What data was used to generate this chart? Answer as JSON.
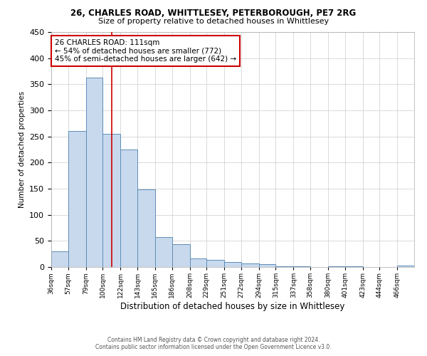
{
  "title": "26, CHARLES ROAD, WHITTLESEY, PETERBOROUGH, PE7 2RG",
  "subtitle": "Size of property relative to detached houses in Whittlesey",
  "xlabel": "Distribution of detached houses by size in Whittlesey",
  "ylabel": "Number of detached properties",
  "footer1": "Contains HM Land Registry data © Crown copyright and database right 2024.",
  "footer2": "Contains public sector information licensed under the Open Government Licence v3.0.",
  "annotation_line1": "26 CHARLES ROAD: 111sqm",
  "annotation_line2": "← 54% of detached houses are smaller (772)",
  "annotation_line3": "45% of semi-detached houses are larger (642) →",
  "bar_left_edges": [
    36,
    57,
    79,
    100,
    122,
    143,
    165,
    186,
    208,
    229,
    251,
    272,
    294,
    315,
    337,
    358,
    380,
    401,
    423,
    444,
    466
  ],
  "bar_widths": [
    21,
    22,
    21,
    22,
    21,
    22,
    21,
    22,
    21,
    22,
    21,
    22,
    21,
    22,
    21,
    22,
    21,
    22,
    21,
    22,
    21
  ],
  "bar_heights": [
    30,
    260,
    363,
    255,
    225,
    148,
    57,
    44,
    17,
    13,
    10,
    7,
    5,
    2,
    2,
    0,
    2,
    2,
    0,
    0,
    3
  ],
  "bar_color": "#c9d9ed",
  "bar_edge_color": "#5b8db8",
  "grid_color": "#cccccc",
  "background_color": "#ffffff",
  "property_line_x": 111,
  "property_line_color": "#cc0000",
  "annotation_box_color": "#ffffff",
  "annotation_box_edge_color": "#cc0000",
  "ylim": [
    0,
    450
  ],
  "yticks": [
    0,
    50,
    100,
    150,
    200,
    250,
    300,
    350,
    400,
    450
  ],
  "tick_labels": [
    "36sqm",
    "57sqm",
    "79sqm",
    "100sqm",
    "122sqm",
    "143sqm",
    "165sqm",
    "186sqm",
    "208sqm",
    "229sqm",
    "251sqm",
    "272sqm",
    "294sqm",
    "315sqm",
    "337sqm",
    "358sqm",
    "380sqm",
    "401sqm",
    "423sqm",
    "444sqm",
    "466sqm"
  ]
}
